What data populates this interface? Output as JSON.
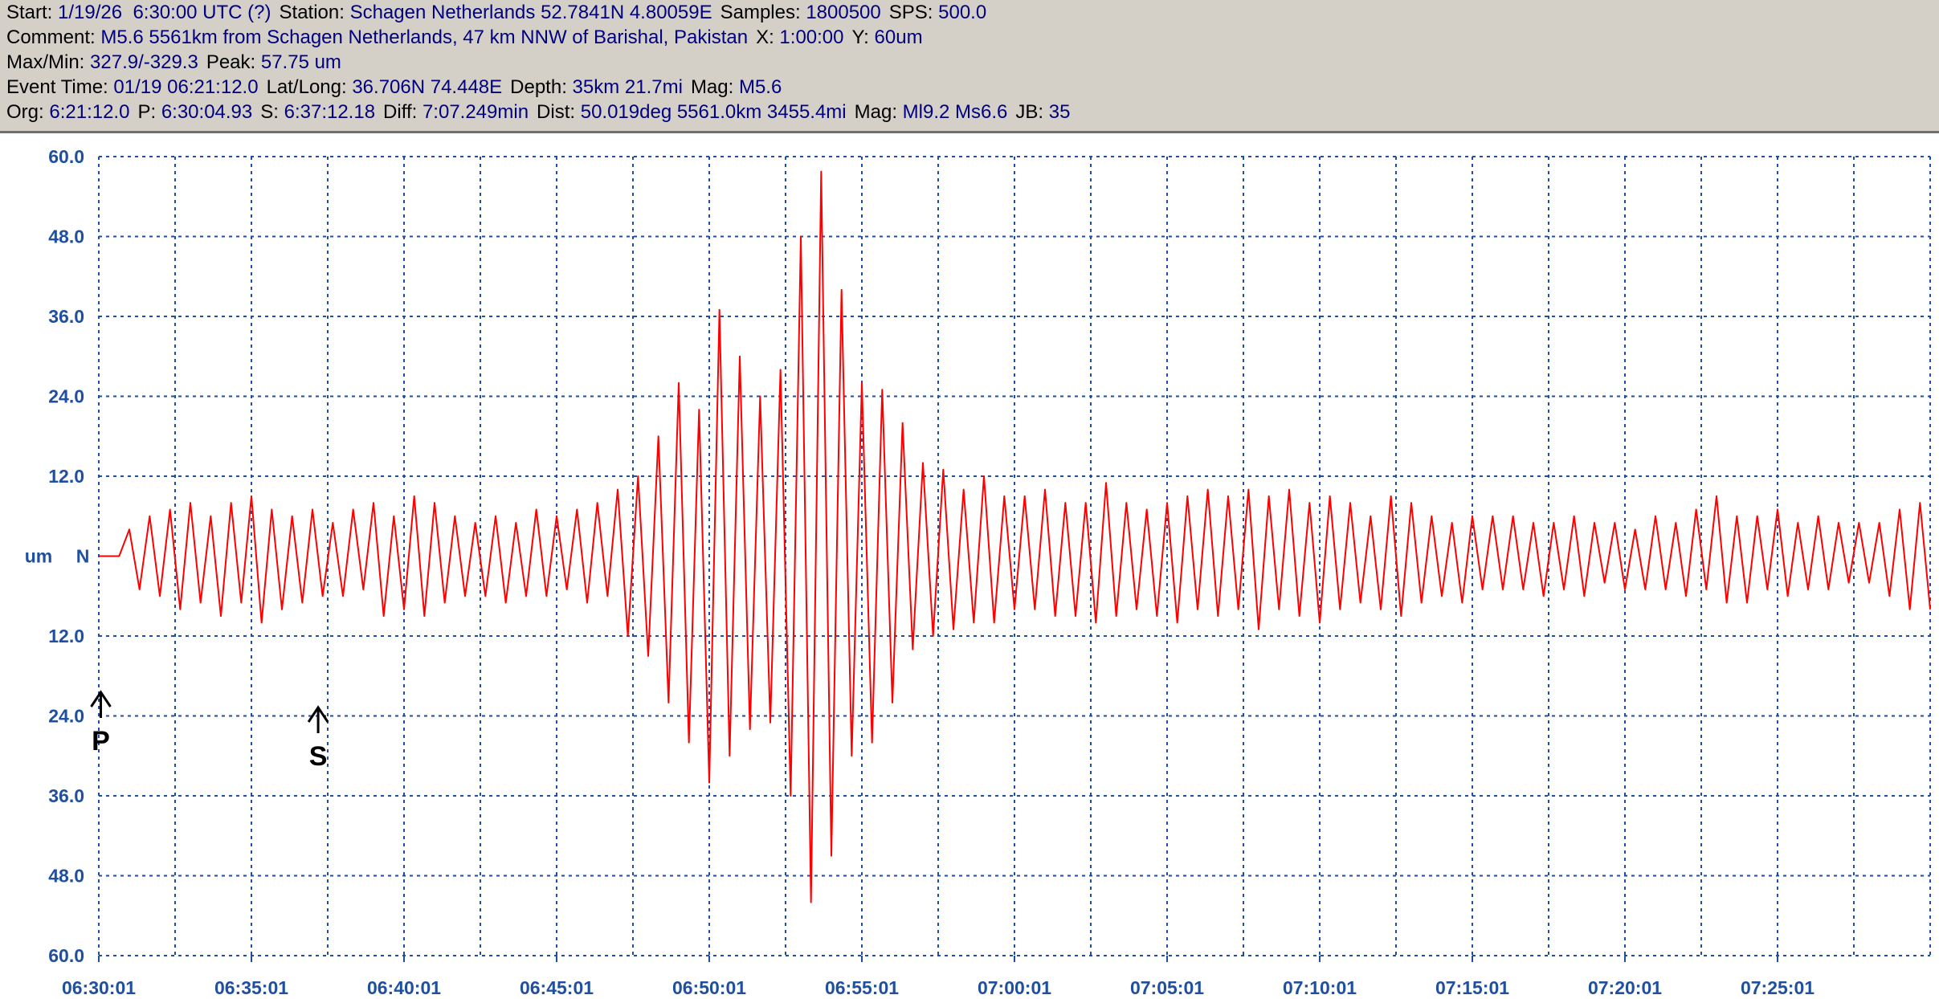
{
  "header": {
    "lines": [
      [
        {
          "label": "Start:",
          "value": "1/19/26  6:30:00 UTC (?)"
        },
        {
          "label": "Station:",
          "value": "Schagen Netherlands 52.7841N 4.80059E"
        },
        {
          "label": "Samples:",
          "value": "1800500"
        },
        {
          "label": "SPS:",
          "value": "500.0"
        }
      ],
      [
        {
          "label": "Comment:",
          "value": "M5.6 5561km from Schagen Netherlands, 47 km NNW of Barishal, Pakistan"
        },
        {
          "label": "X:",
          "value": "1:00:00"
        },
        {
          "label": "Y:",
          "value": "60um"
        }
      ],
      [
        {
          "label": "Max/Min:",
          "value": "327.9/-329.3"
        },
        {
          "label": "Peak:",
          "value": "57.75 um"
        }
      ],
      [
        {
          "label": "Event Time:",
          "value": "01/19 06:21:12.0"
        },
        {
          "label": "Lat/Long:",
          "value": "36.706N 74.448E"
        },
        {
          "label": "Depth:",
          "value": "35km 21.7mi"
        },
        {
          "label": "Mag:",
          "value": "M5.6"
        }
      ],
      [
        {
          "label": "Org:",
          "value": "6:21:12.0"
        },
        {
          "label": "P:",
          "value": "6:30:04.93"
        },
        {
          "label": "S:",
          "value": "6:37:12.18"
        },
        {
          "label": "Diff:",
          "value": "7:07.249min"
        },
        {
          "label": "Dist:",
          "value": "50.019deg 5561.0km 3455.4mi"
        },
        {
          "label": "Mag:",
          "value": "Ml9.2 Ms6.6"
        },
        {
          "label": "JB:",
          "value": "35"
        }
      ]
    ]
  },
  "chart_data": {
    "type": "line",
    "y_label": "um",
    "channel": "N",
    "xlim": [
      "06:30:01",
      "07:30:01"
    ],
    "xticks": [
      "06:30:01",
      "06:35:01",
      "06:40:01",
      "06:45:01",
      "06:50:01",
      "06:55:01",
      "07:00:01",
      "07:05:01",
      "07:10:01",
      "07:15:01",
      "07:20:01",
      "07:25:01"
    ],
    "xgrid": [
      "06:30:01",
      "06:32:31",
      "06:35:01",
      "06:37:31",
      "06:40:01",
      "06:42:31",
      "06:45:01",
      "06:47:31",
      "06:50:01",
      "06:52:31",
      "06:55:01",
      "06:57:31",
      "07:00:01",
      "07:02:31",
      "07:05:01",
      "07:07:31",
      "07:10:01",
      "07:12:31",
      "07:15:01",
      "07:17:31",
      "07:20:01",
      "07:22:31",
      "07:25:01",
      "07:27:31"
    ],
    "ylim": [
      -60,
      60
    ],
    "yticks": [
      {
        "value": 60,
        "label": "60.0"
      },
      {
        "value": 48,
        "label": "48.0"
      },
      {
        "value": 36,
        "label": "36.0"
      },
      {
        "value": 24,
        "label": "24.0"
      },
      {
        "value": 12,
        "label": "12.0"
      },
      {
        "value": -12,
        "label": "12.0"
      },
      {
        "value": -24,
        "label": "24.0"
      },
      {
        "value": -36,
        "label": "36.0"
      },
      {
        "value": -48,
        "label": "48.0"
      },
      {
        "value": -60,
        "label": "60.0"
      }
    ],
    "grid": true,
    "markers": [
      {
        "label": "P",
        "x": "06:30:04.93"
      },
      {
        "label": "S",
        "x": "06:37:12.18"
      }
    ],
    "x": [
      "06:30:01",
      "06:30:21",
      "06:30:41",
      "06:31:01",
      "06:31:21",
      "06:31:41",
      "06:32:01",
      "06:32:21",
      "06:32:41",
      "06:33:01",
      "06:33:21",
      "06:33:41",
      "06:34:01",
      "06:34:21",
      "06:34:41",
      "06:35:01",
      "06:35:21",
      "06:35:41",
      "06:36:01",
      "06:36:21",
      "06:36:41",
      "06:37:01",
      "06:37:21",
      "06:37:41",
      "06:38:01",
      "06:38:21",
      "06:38:41",
      "06:39:01",
      "06:39:21",
      "06:39:41",
      "06:40:01",
      "06:40:21",
      "06:40:41",
      "06:41:01",
      "06:41:21",
      "06:41:41",
      "06:42:01",
      "06:42:21",
      "06:42:41",
      "06:43:01",
      "06:43:21",
      "06:43:41",
      "06:44:01",
      "06:44:21",
      "06:44:41",
      "06:45:01",
      "06:45:21",
      "06:45:41",
      "06:46:01",
      "06:46:21",
      "06:46:41",
      "06:47:01",
      "06:47:21",
      "06:47:41",
      "06:48:01",
      "06:48:21",
      "06:48:41",
      "06:49:01",
      "06:49:21",
      "06:49:41",
      "06:50:01",
      "06:50:21",
      "06:50:41",
      "06:51:01",
      "06:51:21",
      "06:51:41",
      "06:52:01",
      "06:52:21",
      "06:52:41",
      "06:53:01",
      "06:53:21",
      "06:53:41",
      "06:54:01",
      "06:54:21",
      "06:54:41",
      "06:55:01",
      "06:55:21",
      "06:55:41",
      "06:56:01",
      "06:56:21",
      "06:56:41",
      "06:57:01",
      "06:57:21",
      "06:57:41",
      "06:58:01",
      "06:58:21",
      "06:58:41",
      "06:59:01",
      "06:59:21",
      "06:59:41",
      "07:00:01",
      "07:00:21",
      "07:00:41",
      "07:01:01",
      "07:01:21",
      "07:01:41",
      "07:02:01",
      "07:02:21",
      "07:02:41",
      "07:03:01",
      "07:03:21",
      "07:03:41",
      "07:04:01",
      "07:04:21",
      "07:04:41",
      "07:05:01",
      "07:05:21",
      "07:05:41",
      "07:06:01",
      "07:06:21",
      "07:06:41",
      "07:07:01",
      "07:07:21",
      "07:07:41",
      "07:08:01",
      "07:08:21",
      "07:08:41",
      "07:09:01",
      "07:09:21",
      "07:09:41",
      "07:10:01",
      "07:10:21",
      "07:10:41",
      "07:11:01",
      "07:11:21",
      "07:11:41",
      "07:12:01",
      "07:12:21",
      "07:12:41",
      "07:13:01",
      "07:13:21",
      "07:13:41",
      "07:14:01",
      "07:14:21",
      "07:14:41",
      "07:15:01",
      "07:15:21",
      "07:15:41",
      "07:16:01",
      "07:16:21",
      "07:16:41",
      "07:17:01",
      "07:17:21",
      "07:17:41",
      "07:18:01",
      "07:18:21",
      "07:18:41",
      "07:19:01",
      "07:19:21",
      "07:19:41",
      "07:20:01",
      "07:20:21",
      "07:20:41",
      "07:21:01",
      "07:21:21",
      "07:21:41",
      "07:22:01",
      "07:22:21",
      "07:22:41",
      "07:23:01",
      "07:23:21",
      "07:23:41",
      "07:24:01",
      "07:24:21",
      "07:24:41",
      "07:25:01",
      "07:25:21",
      "07:25:41",
      "07:26:01",
      "07:26:21",
      "07:26:41",
      "07:27:01",
      "07:27:21",
      "07:27:41",
      "07:28:01",
      "07:28:21",
      "07:28:41",
      "07:29:01",
      "07:29:21",
      "07:29:41",
      "07:30:01"
    ],
    "series": [
      {
        "color": "#ff0000",
        "values": [
          0,
          0,
          0,
          4,
          -5,
          6,
          -6,
          7,
          -8,
          8,
          -7,
          6,
          -9,
          8,
          -7,
          9,
          -10,
          7,
          -8,
          6,
          -7,
          7,
          -6,
          5,
          -6,
          7,
          -5,
          8,
          -9,
          6,
          -8,
          9,
          -9,
          8,
          -7,
          6,
          -6,
          5,
          -6,
          6,
          -7,
          5,
          -6,
          7,
          -6,
          6,
          -5,
          7,
          -7,
          8,
          -6,
          10,
          -12,
          12,
          -15,
          18,
          -22,
          26,
          -28,
          22,
          -34,
          37,
          -30,
          30,
          -26,
          24,
          -25,
          28,
          -36,
          48,
          -52,
          57.75,
          -45,
          40,
          -30,
          26,
          -28,
          25,
          -22,
          20,
          -14,
          14,
          -12,
          13,
          -11,
          10,
          -10,
          12,
          -10,
          9,
          -8,
          9,
          -8,
          10,
          -9,
          8,
          -9,
          8,
          -10,
          11,
          -9,
          8,
          -8,
          7,
          -9,
          8,
          -10,
          9,
          -8,
          10,
          -9,
          9,
          -8,
          10,
          -11,
          9,
          -8,
          10,
          -9,
          8,
          -10,
          9,
          -8,
          8,
          -7,
          6,
          -8,
          9,
          -9,
          8,
          -7,
          6,
          -6,
          5,
          -7,
          6,
          -5,
          6,
          -5,
          6,
          -5,
          5,
          -6,
          5,
          -5,
          6,
          -6,
          5,
          -4,
          5,
          -5,
          4,
          -5,
          6,
          -5,
          5,
          -6,
          7,
          -5,
          9,
          -7,
          6,
          -7,
          6,
          -5,
          7,
          -6,
          5,
          -5,
          6,
          -5,
          5,
          -4,
          5,
          -4,
          5,
          -6,
          7,
          -8,
          8,
          -8
        ]
      }
    ]
  }
}
